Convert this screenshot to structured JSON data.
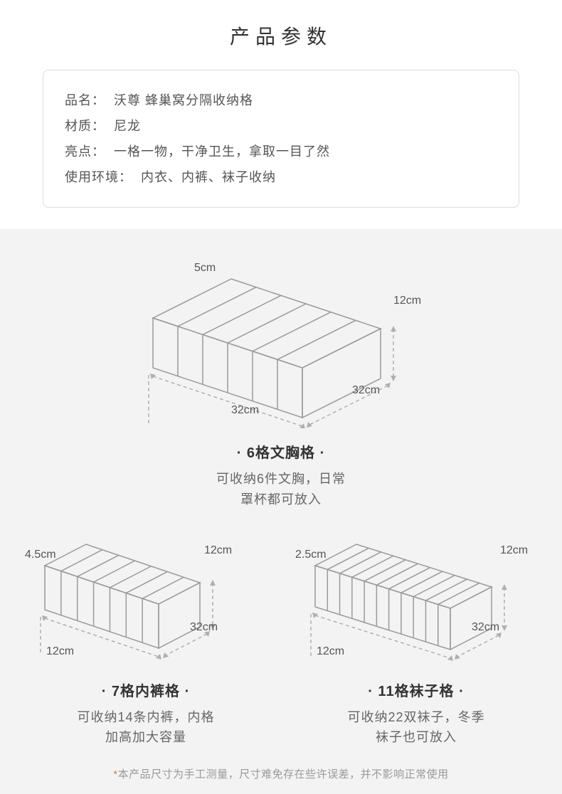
{
  "title": "产品参数",
  "specs": {
    "name_label": "品名：",
    "name_value": "沃尊  蜂巢窝分隔收纳格",
    "material_label": "材质：",
    "material_value": "尼龙",
    "highlight_label": "亮点：",
    "highlight_value": "一格一物，干净卫生，拿取一目了然",
    "env_label": "使用环境：",
    "env_value": "内衣、内裤、袜子收纳"
  },
  "box6": {
    "title": "· 6格文胸格 ·",
    "desc1": "可收纳6件文胸，日常",
    "desc2": "罩杯都可放入",
    "dim_slot": "5cm",
    "dim_height": "12cm",
    "dim_width_back": "32cm",
    "dim_width_front": "32cm",
    "slots": 6,
    "stroke": "#9a9a9a",
    "dash_stroke": "#b0b0b0"
  },
  "box7": {
    "title": "· 7格内裤格 ·",
    "desc1": "可收纳14条内裤，内格",
    "desc2": "加高加大容量",
    "dim_slot": "4.5cm",
    "dim_height": "12cm",
    "dim_length": "32cm",
    "dim_depth": "12cm",
    "slots": 7,
    "stroke": "#9a9a9a",
    "dash_stroke": "#b0b0b0"
  },
  "box11": {
    "title": "· 11格袜子格 ·",
    "desc1": "可收纳22双袜子，冬季",
    "desc2": "袜子也可放入",
    "dim_slot": "2.5cm",
    "dim_height": "12cm",
    "dim_length": "32cm",
    "dim_depth": "12cm",
    "slots": 11,
    "stroke": "#9a9a9a",
    "dash_stroke": "#b0b0b0"
  },
  "footnote_star": "*",
  "footnote": "本产品尺寸为手工测量，尺寸难免存在些许误差，并不影响正常使用",
  "colors": {
    "page_bg": "#ffffff",
    "section_bg": "#f3f3f3",
    "border": "#dcdcdc",
    "text": "#333333",
    "subtext": "#666666",
    "footnote": "#999999"
  }
}
